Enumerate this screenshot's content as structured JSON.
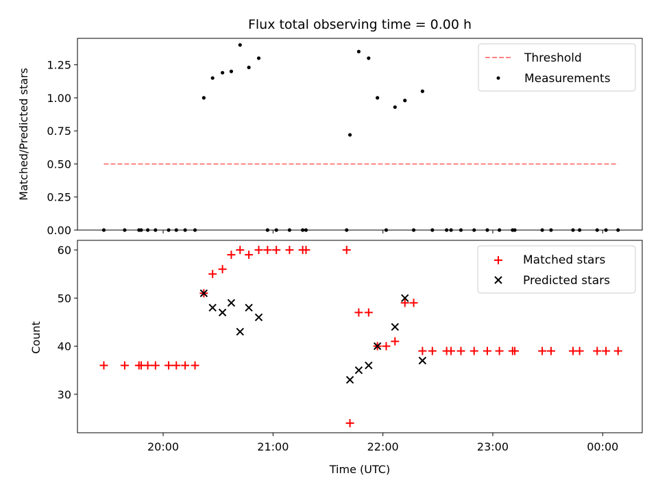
{
  "chart_data": [
    {
      "type": "scatter",
      "title": "Flux total observing time = 0.00 h",
      "xlabel": "",
      "ylabel": "Matched/Predicted stars",
      "x_unit": "hours since 00:00 of first night (UTC)",
      "xlim": [
        19.22,
        24.36
      ],
      "ylim": [
        0.0,
        1.45
      ],
      "y_ticks": [
        0.0,
        0.25,
        0.5,
        0.75,
        1.0,
        1.25
      ],
      "y_tick_labels": [
        "0.00",
        "0.25",
        "0.50",
        "0.75",
        "1.00",
        "1.25"
      ],
      "x_ticks": [
        20,
        21,
        22,
        23,
        24
      ],
      "legend_position": "top-right",
      "series": [
        {
          "name": "Threshold",
          "kind": "line",
          "style": "dashed",
          "color": "#ff8080",
          "x": [
            19.46,
            24.14
          ],
          "y": [
            0.5,
            0.5
          ]
        },
        {
          "name": "Measurements",
          "kind": "scatter",
          "marker": "dot",
          "color": "#000000",
          "points": [
            [
              19.46,
              0.0
            ],
            [
              19.65,
              0.0
            ],
            [
              19.78,
              0.0
            ],
            [
              19.8,
              0.0
            ],
            [
              19.86,
              0.0
            ],
            [
              19.93,
              0.0
            ],
            [
              20.05,
              0.0
            ],
            [
              20.12,
              0.0
            ],
            [
              20.2,
              0.0
            ],
            [
              20.29,
              0.0
            ],
            [
              20.37,
              1.0
            ],
            [
              20.45,
              1.15
            ],
            [
              20.54,
              1.19
            ],
            [
              20.62,
              1.2
            ],
            [
              20.7,
              1.4
            ],
            [
              20.78,
              1.23
            ],
            [
              20.87,
              1.3
            ],
            [
              20.95,
              0.0
            ],
            [
              21.03,
              0.0
            ],
            [
              21.15,
              0.0
            ],
            [
              21.27,
              0.0
            ],
            [
              21.3,
              0.0
            ],
            [
              21.67,
              0.0
            ],
            [
              21.7,
              0.72
            ],
            [
              21.78,
              1.35
            ],
            [
              21.87,
              1.3
            ],
            [
              21.95,
              1.0
            ],
            [
              22.03,
              0.0
            ],
            [
              22.11,
              0.93
            ],
            [
              22.2,
              0.98
            ],
            [
              22.28,
              0.0
            ],
            [
              22.36,
              1.05
            ],
            [
              22.45,
              0.0
            ],
            [
              22.58,
              0.0
            ],
            [
              22.62,
              0.0
            ],
            [
              22.71,
              0.0
            ],
            [
              22.83,
              0.0
            ],
            [
              22.95,
              0.0
            ],
            [
              23.06,
              0.0
            ],
            [
              23.18,
              0.0
            ],
            [
              23.2,
              0.0
            ],
            [
              23.45,
              0.0
            ],
            [
              23.53,
              0.0
            ],
            [
              23.73,
              0.0
            ],
            [
              23.79,
              0.0
            ],
            [
              23.95,
              0.0
            ],
            [
              24.03,
              0.0
            ],
            [
              24.14,
              0.0
            ]
          ]
        }
      ]
    },
    {
      "type": "scatter",
      "title": "",
      "xlabel": "Time (UTC)",
      "ylabel": "Count",
      "x_unit": "hours since 00:00 of first night (UTC)",
      "xlim": [
        19.22,
        24.36
      ],
      "ylim": [
        22.0,
        62.0
      ],
      "y_ticks": [
        30,
        40,
        50,
        60
      ],
      "y_tick_labels": [
        "30",
        "40",
        "50",
        "60"
      ],
      "x_ticks": [
        20,
        21,
        22,
        23,
        24
      ],
      "x_tick_labels": [
        "20:00",
        "21:00",
        "22:00",
        "23:00",
        "00:00"
      ],
      "legend_position": "top-right",
      "series": [
        {
          "name": "Matched stars",
          "marker": "plus",
          "color": "#ff0000",
          "points": [
            [
              19.46,
              36
            ],
            [
              19.65,
              36
            ],
            [
              19.78,
              36
            ],
            [
              19.8,
              36
            ],
            [
              19.86,
              36
            ],
            [
              19.93,
              36
            ],
            [
              20.05,
              36
            ],
            [
              20.12,
              36
            ],
            [
              20.2,
              36
            ],
            [
              20.29,
              36
            ],
            [
              20.37,
              51
            ],
            [
              20.45,
              55
            ],
            [
              20.54,
              56
            ],
            [
              20.62,
              59
            ],
            [
              20.7,
              60
            ],
            [
              20.78,
              59
            ],
            [
              20.87,
              60
            ],
            [
              20.95,
              60
            ],
            [
              21.03,
              60
            ],
            [
              21.15,
              60
            ],
            [
              21.27,
              60
            ],
            [
              21.3,
              60
            ],
            [
              21.67,
              60
            ],
            [
              21.7,
              24
            ],
            [
              21.78,
              47
            ],
            [
              21.87,
              47
            ],
            [
              21.95,
              40
            ],
            [
              22.03,
              40
            ],
            [
              22.11,
              41
            ],
            [
              22.2,
              49
            ],
            [
              22.28,
              49
            ],
            [
              22.36,
              39
            ],
            [
              22.45,
              39
            ],
            [
              22.58,
              39
            ],
            [
              22.62,
              39
            ],
            [
              22.71,
              39
            ],
            [
              22.83,
              39
            ],
            [
              22.95,
              39
            ],
            [
              23.06,
              39
            ],
            [
              23.18,
              39
            ],
            [
              23.2,
              39
            ],
            [
              23.45,
              39
            ],
            [
              23.53,
              39
            ],
            [
              23.73,
              39
            ],
            [
              23.79,
              39
            ],
            [
              23.95,
              39
            ],
            [
              24.03,
              39
            ],
            [
              24.14,
              39
            ]
          ]
        },
        {
          "name": "Predicted stars",
          "marker": "x",
          "color": "#000000",
          "points": [
            [
              20.37,
              51
            ],
            [
              20.45,
              48
            ],
            [
              20.54,
              47
            ],
            [
              20.62,
              49
            ],
            [
              20.7,
              43
            ],
            [
              20.78,
              48
            ],
            [
              20.87,
              46
            ],
            [
              21.7,
              33
            ],
            [
              21.78,
              35
            ],
            [
              21.87,
              36
            ],
            [
              21.95,
              40
            ],
            [
              22.11,
              44
            ],
            [
              22.2,
              50
            ],
            [
              22.36,
              37
            ]
          ]
        }
      ]
    }
  ]
}
